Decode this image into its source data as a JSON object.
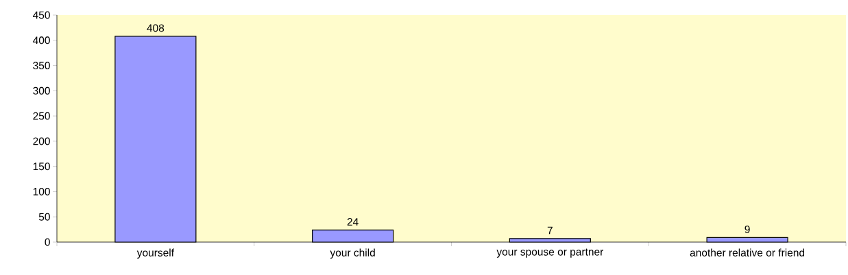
{
  "chart_data": {
    "type": "bar",
    "categories": [
      "yourself",
      "your child",
      "your spouse or partner",
      "another relative or friend"
    ],
    "values": [
      408,
      24,
      7,
      9
    ],
    "color": "#9999ff",
    "ylim": [
      0,
      450
    ],
    "yticks": [
      0,
      50,
      100,
      150,
      200,
      250,
      300,
      350,
      400,
      450
    ],
    "data_labels": true
  }
}
